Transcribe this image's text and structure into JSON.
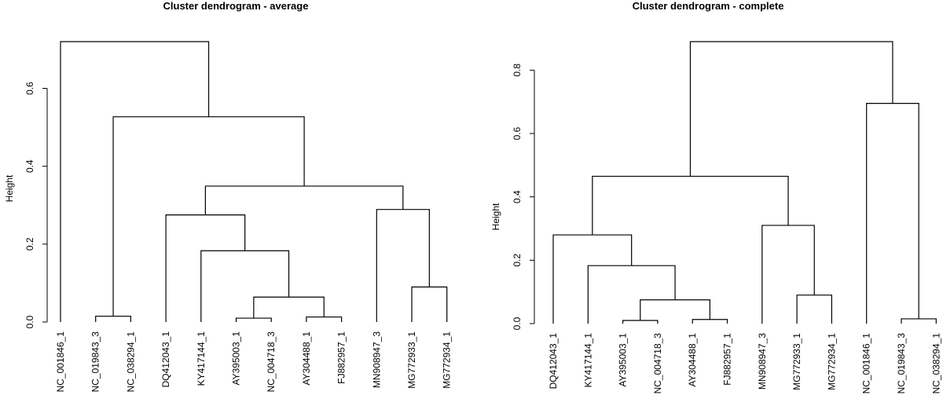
{
  "chart_data": [
    {
      "type": "dendrogram",
      "title": "Cluster dendrogram - average",
      "ylabel": "Height",
      "xlabel": "",
      "ylim": [
        0,
        0.72
      ],
      "yticks": [
        0.0,
        0.2,
        0.4,
        0.6
      ],
      "ytick_labels": [
        "0.0",
        "0.2",
        "0.4",
        "0.6"
      ],
      "leaves": [
        "NC_001846_1",
        "NC_019843_3",
        "NC_038294_1",
        "DQ412043_1",
        "KY417144_1",
        "AY395003_1",
        "NC_004718_3",
        "AY304488_1",
        "FJ882957_1",
        "MN908947_3",
        "MG772933_1",
        "MG772934_1"
      ],
      "merges": [
        {
          "left": 1,
          "right": 2,
          "height": 0.015
        },
        {
          "left": 5,
          "right": 6,
          "height": 0.01
        },
        {
          "left": 7,
          "right": 8,
          "height": 0.013
        },
        {
          "left": 10,
          "right": 11,
          "height": 0.09
        },
        {
          "left": "m1",
          "right": "m2",
          "height": 0.064
        },
        {
          "left": 4,
          "right": "m4",
          "height": 0.183
        },
        {
          "left": 3,
          "right": "m5",
          "height": 0.275
        },
        {
          "left": 9,
          "right": "m3",
          "height": 0.289
        },
        {
          "left": "m6",
          "right": "m7",
          "height": 0.349
        },
        {
          "left": "m0",
          "right": "m8",
          "height": 0.527
        },
        {
          "left": 0,
          "right": "m9",
          "height": 0.72
        }
      ]
    },
    {
      "type": "dendrogram",
      "title": "Cluster dendrogram - complete",
      "ylabel": "Height",
      "xlabel": "",
      "ylim": [
        0,
        0.89
      ],
      "yticks": [
        0.0,
        0.2,
        0.4,
        0.6,
        0.8
      ],
      "ytick_labels": [
        "0.0",
        "0.2",
        "0.4",
        "0.6",
        "0.8"
      ],
      "leaves": [
        "DQ412043_1",
        "KY417144_1",
        "AY395003_1",
        "NC_004718_3",
        "AY304488_1",
        "FJ882957_1",
        "MN908947_3",
        "MG772933_1",
        "MG772934_1",
        "NC_001846_1",
        "NC_019843_3",
        "NC_038294_1"
      ],
      "merges": [
        {
          "left": 2,
          "right": 3,
          "height": 0.01
        },
        {
          "left": 4,
          "right": 5,
          "height": 0.013
        },
        {
          "left": 10,
          "right": 11,
          "height": 0.015
        },
        {
          "left": 7,
          "right": 8,
          "height": 0.09
        },
        {
          "left": "m0",
          "right": "m1",
          "height": 0.075
        },
        {
          "left": 1,
          "right": "m4",
          "height": 0.183
        },
        {
          "left": 0,
          "right": "m5",
          "height": 0.28
        },
        {
          "left": 6,
          "right": "m3",
          "height": 0.31
        },
        {
          "left": "m6",
          "right": "m7",
          "height": 0.465
        },
        {
          "left": 9,
          "right": "m2",
          "height": 0.695
        },
        {
          "left": "m8",
          "right": "m9",
          "height": 0.89
        }
      ]
    }
  ]
}
